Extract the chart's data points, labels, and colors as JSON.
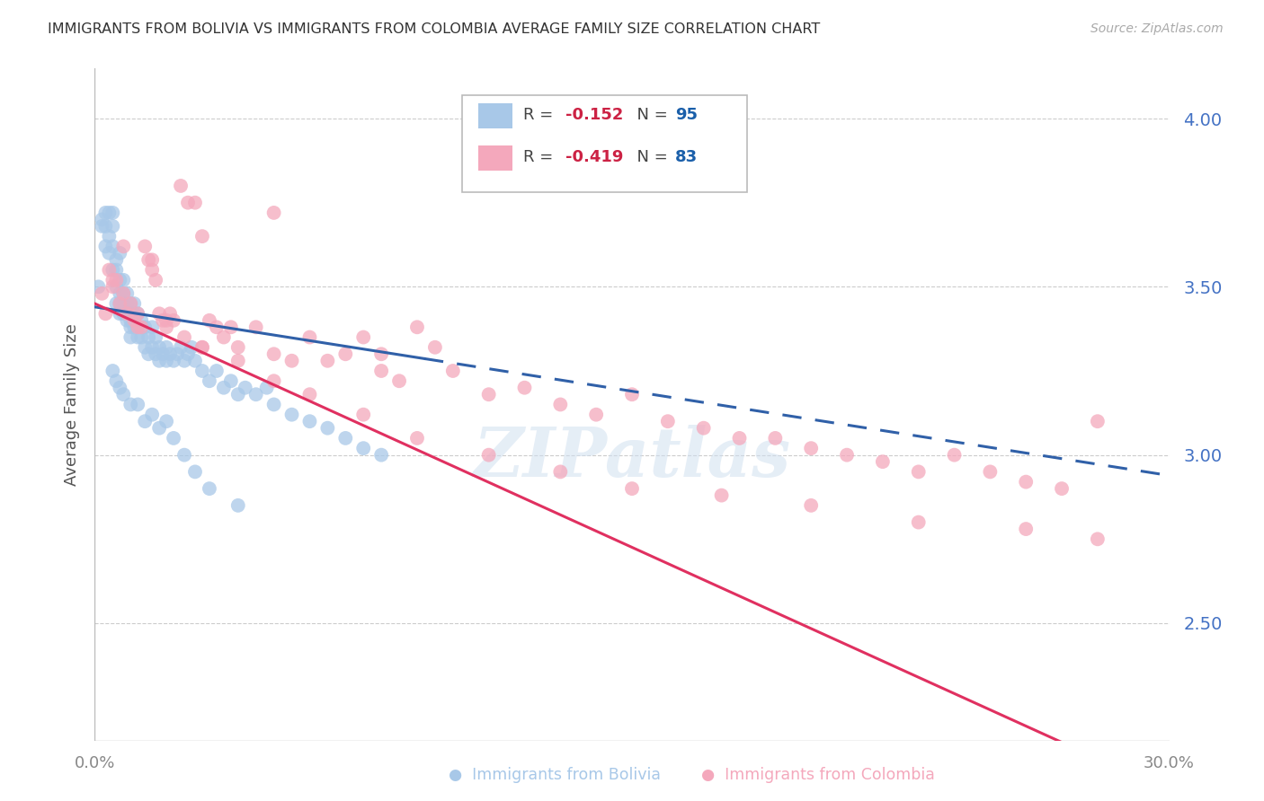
{
  "title": "IMMIGRANTS FROM BOLIVIA VS IMMIGRANTS FROM COLOMBIA AVERAGE FAMILY SIZE CORRELATION CHART",
  "source_text": "Source: ZipAtlas.com",
  "ylabel": "Average Family Size",
  "yticks_right": [
    2.5,
    3.0,
    3.5,
    4.0
  ],
  "xlim": [
    0.0,
    0.3
  ],
  "ylim": [
    2.15,
    4.15
  ],
  "bolivia_color": "#a8c8e8",
  "colombia_color": "#f4a8bc",
  "bolivia_line_color": "#3060a8",
  "colombia_line_color": "#e03060",
  "bolivia_R": -0.152,
  "bolivia_N": 95,
  "colombia_R": -0.419,
  "colombia_N": 83,
  "legend_R_color": "#cc2244",
  "legend_N_color": "#1a5faa",
  "watermark": "ZIPatlas",
  "bolivia_intercept": 3.44,
  "bolivia_slope": -1.67,
  "colombia_intercept": 3.45,
  "colombia_slope": -4.83,
  "bolivia_scatter_x": [
    0.001,
    0.002,
    0.002,
    0.003,
    0.003,
    0.003,
    0.004,
    0.004,
    0.004,
    0.005,
    0.005,
    0.005,
    0.005,
    0.006,
    0.006,
    0.006,
    0.006,
    0.007,
    0.007,
    0.007,
    0.007,
    0.007,
    0.008,
    0.008,
    0.008,
    0.008,
    0.009,
    0.009,
    0.009,
    0.009,
    0.01,
    0.01,
    0.01,
    0.01,
    0.01,
    0.011,
    0.011,
    0.011,
    0.012,
    0.012,
    0.012,
    0.013,
    0.013,
    0.014,
    0.014,
    0.015,
    0.015,
    0.016,
    0.016,
    0.017,
    0.017,
    0.018,
    0.018,
    0.019,
    0.02,
    0.02,
    0.021,
    0.022,
    0.023,
    0.024,
    0.025,
    0.026,
    0.027,
    0.028,
    0.03,
    0.032,
    0.034,
    0.036,
    0.038,
    0.04,
    0.042,
    0.045,
    0.048,
    0.05,
    0.055,
    0.06,
    0.065,
    0.07,
    0.075,
    0.08,
    0.005,
    0.006,
    0.007,
    0.008,
    0.01,
    0.012,
    0.014,
    0.016,
    0.018,
    0.02,
    0.022,
    0.025,
    0.028,
    0.032,
    0.04
  ],
  "bolivia_scatter_y": [
    3.5,
    3.7,
    3.68,
    3.72,
    3.62,
    3.68,
    3.65,
    3.6,
    3.72,
    3.68,
    3.62,
    3.55,
    3.72,
    3.58,
    3.55,
    3.5,
    3.45,
    3.6,
    3.52,
    3.48,
    3.45,
    3.42,
    3.52,
    3.48,
    3.45,
    3.42,
    3.48,
    3.45,
    3.42,
    3.4,
    3.45,
    3.42,
    3.4,
    3.38,
    3.35,
    3.45,
    3.42,
    3.38,
    3.42,
    3.38,
    3.35,
    3.4,
    3.35,
    3.38,
    3.32,
    3.35,
    3.3,
    3.38,
    3.32,
    3.35,
    3.3,
    3.32,
    3.28,
    3.3,
    3.32,
    3.28,
    3.3,
    3.28,
    3.3,
    3.32,
    3.28,
    3.3,
    3.32,
    3.28,
    3.25,
    3.22,
    3.25,
    3.2,
    3.22,
    3.18,
    3.2,
    3.18,
    3.2,
    3.15,
    3.12,
    3.1,
    3.08,
    3.05,
    3.02,
    3.0,
    3.25,
    3.22,
    3.2,
    3.18,
    3.15,
    3.15,
    3.1,
    3.12,
    3.08,
    3.1,
    3.05,
    3.0,
    2.95,
    2.9,
    2.85
  ],
  "colombia_scatter_x": [
    0.002,
    0.003,
    0.004,
    0.005,
    0.006,
    0.007,
    0.008,
    0.009,
    0.01,
    0.011,
    0.012,
    0.013,
    0.014,
    0.015,
    0.016,
    0.017,
    0.018,
    0.019,
    0.02,
    0.021,
    0.022,
    0.024,
    0.026,
    0.028,
    0.03,
    0.032,
    0.034,
    0.036,
    0.038,
    0.04,
    0.045,
    0.05,
    0.055,
    0.06,
    0.065,
    0.07,
    0.075,
    0.08,
    0.085,
    0.09,
    0.095,
    0.1,
    0.11,
    0.12,
    0.13,
    0.14,
    0.15,
    0.16,
    0.17,
    0.18,
    0.19,
    0.2,
    0.21,
    0.22,
    0.23,
    0.24,
    0.25,
    0.26,
    0.27,
    0.28,
    0.005,
    0.008,
    0.012,
    0.016,
    0.02,
    0.025,
    0.03,
    0.04,
    0.05,
    0.06,
    0.075,
    0.09,
    0.11,
    0.13,
    0.15,
    0.175,
    0.2,
    0.23,
    0.26,
    0.28,
    0.03,
    0.05,
    0.08
  ],
  "colombia_scatter_y": [
    3.48,
    3.42,
    3.55,
    3.5,
    3.52,
    3.45,
    3.48,
    3.42,
    3.45,
    3.4,
    3.42,
    3.38,
    3.62,
    3.58,
    3.55,
    3.52,
    3.42,
    3.4,
    3.38,
    3.42,
    3.4,
    3.8,
    3.75,
    3.75,
    3.32,
    3.4,
    3.38,
    3.35,
    3.38,
    3.32,
    3.38,
    3.3,
    3.28,
    3.35,
    3.28,
    3.3,
    3.35,
    3.25,
    3.22,
    3.38,
    3.32,
    3.25,
    3.18,
    3.2,
    3.15,
    3.12,
    3.18,
    3.1,
    3.08,
    3.05,
    3.05,
    3.02,
    3.0,
    2.98,
    2.95,
    3.0,
    2.95,
    2.92,
    2.9,
    3.1,
    3.52,
    3.62,
    3.38,
    3.58,
    3.4,
    3.35,
    3.32,
    3.28,
    3.22,
    3.18,
    3.12,
    3.05,
    3.0,
    2.95,
    2.9,
    2.88,
    2.85,
    2.8,
    2.78,
    2.75,
    3.65,
    3.72,
    3.3
  ]
}
